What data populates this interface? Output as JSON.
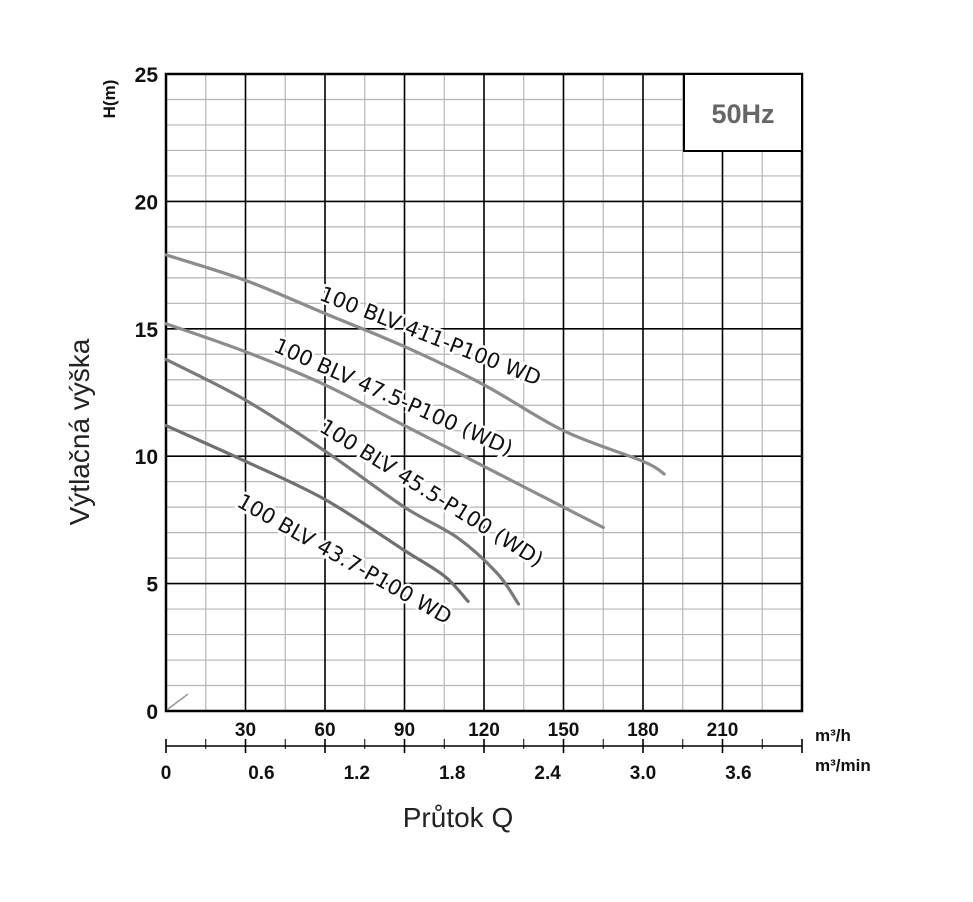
{
  "chart_data": {
    "type": "line",
    "title": "",
    "badge": "50Hz",
    "ylabel_short": "H(m)",
    "ylabel": "Výtlačná výška",
    "xlabel": "Průtok Q",
    "xunit_primary": "m³/h",
    "xunit_secondary": "m³/min",
    "ylim": [
      0,
      25
    ],
    "xlim": [
      0,
      240
    ],
    "grid": true,
    "y_ticks": [
      "0",
      "5",
      "10",
      "15",
      "20",
      "25"
    ],
    "x_ticks_primary": [
      "30",
      "60",
      "90",
      "120",
      "150",
      "180",
      "210"
    ],
    "x_ticks_secondary": [
      "0",
      "0.6",
      "1.2",
      "1.8",
      "2.4",
      "3.0",
      "3.6"
    ],
    "series": [
      {
        "name": "100 BLV 411-P100 WD",
        "color": "#8c8c8c",
        "x": [
          0,
          30,
          60,
          90,
          120,
          150,
          180,
          188
        ],
        "y": [
          17.9,
          16.9,
          15.6,
          14.3,
          12.8,
          11.0,
          9.8,
          9.3
        ]
      },
      {
        "name": "100 BLV 47.5-P100 (WD)",
        "color": "#8c8c8c",
        "x": [
          0,
          30,
          60,
          90,
          120,
          150,
          165
        ],
        "y": [
          15.2,
          14.1,
          12.8,
          11.2,
          9.6,
          8.0,
          7.2
        ]
      },
      {
        "name": "100 BLV 45.5-P100 (WD)",
        "color": "#7a7a7a",
        "x": [
          0,
          30,
          60,
          90,
          110,
          125,
          133
        ],
        "y": [
          13.8,
          12.2,
          10.2,
          8.0,
          6.8,
          5.4,
          4.2
        ]
      },
      {
        "name": "100 BLV 43.7-P100 WD",
        "color": "#707070",
        "x": [
          0,
          30,
          60,
          90,
          105,
          114
        ],
        "y": [
          11.2,
          9.8,
          8.3,
          6.3,
          5.3,
          4.3
        ]
      }
    ]
  }
}
